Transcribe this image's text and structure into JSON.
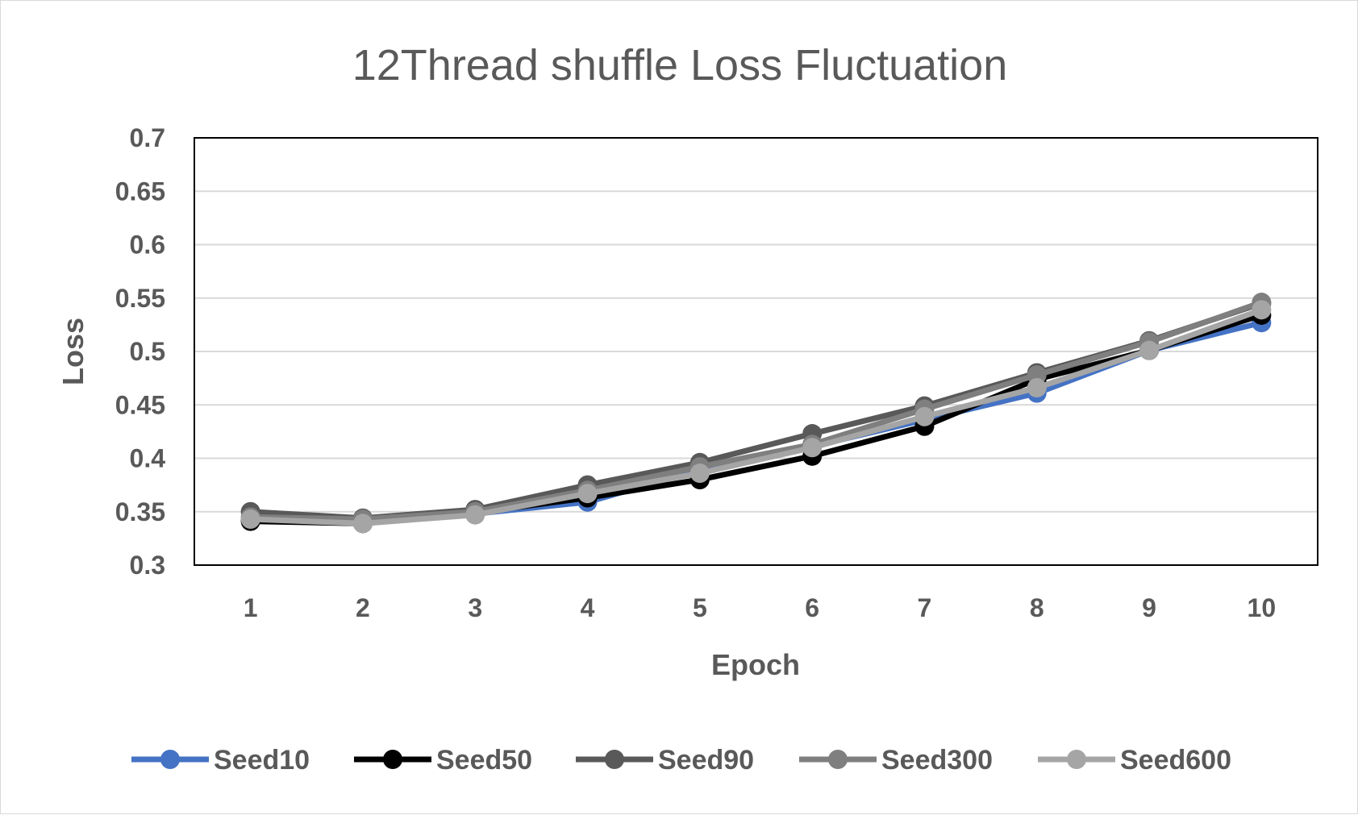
{
  "chart_data": {
    "type": "line",
    "title": "12Thread shuffle Loss Fluctuation",
    "xlabel": "Epoch",
    "ylabel": "Loss",
    "x": [
      1,
      2,
      3,
      4,
      5,
      6,
      7,
      8,
      9,
      10
    ],
    "ylim": [
      0.3,
      0.7
    ],
    "yticks": [
      0.3,
      0.35,
      0.4,
      0.45,
      0.5,
      0.55,
      0.6,
      0.65,
      0.7
    ],
    "grid": true,
    "legend_position": "bottom",
    "series": [
      {
        "name": "Seed10",
        "color": "#4472c4",
        "values": [
          0.342,
          0.339,
          0.348,
          0.359,
          0.389,
          0.411,
          0.436,
          0.461,
          0.501,
          0.527
        ]
      },
      {
        "name": "Seed50",
        "color": "#000000",
        "values": [
          0.341,
          0.339,
          0.349,
          0.363,
          0.38,
          0.402,
          0.43,
          0.474,
          0.501,
          0.534
        ]
      },
      {
        "name": "Seed90",
        "color": "#595959",
        "values": [
          0.35,
          0.344,
          0.352,
          0.375,
          0.396,
          0.423,
          0.449,
          0.48,
          0.51,
          0.545
        ]
      },
      {
        "name": "Seed300",
        "color": "#7f7f7f",
        "values": [
          0.345,
          0.343,
          0.35,
          0.37,
          0.392,
          0.413,
          0.446,
          0.478,
          0.509,
          0.546
        ]
      },
      {
        "name": "Seed600",
        "color": "#a5a5a5",
        "values": [
          0.343,
          0.339,
          0.347,
          0.367,
          0.386,
          0.41,
          0.439,
          0.466,
          0.501,
          0.539
        ]
      }
    ]
  }
}
